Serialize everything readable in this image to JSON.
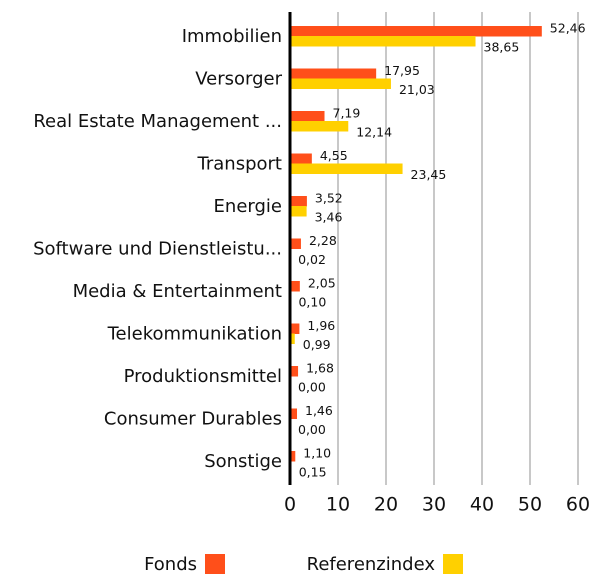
{
  "chart_data": {
    "type": "bar",
    "orientation": "horizontal",
    "categories": [
      "Immobilien",
      "Versorger",
      "Real Estate Management ...",
      "Transport",
      "Energie",
      "Software und Dienstleistu...",
      "Media & Entertainment",
      "Telekommunikation",
      "Produktionsmittel",
      "Consumer Durables",
      "Sonstige"
    ],
    "series": [
      {
        "name": "Fonds",
        "color": "#ff4f1a",
        "values": [
          52.46,
          17.95,
          7.19,
          4.55,
          3.52,
          2.28,
          2.05,
          1.96,
          1.68,
          1.46,
          1.1
        ],
        "value_labels": [
          "52,46",
          "17,95",
          "7,19",
          "4,55",
          "3,52",
          "2,28",
          "2,05",
          "1,96",
          "1,68",
          "1,46",
          "1,10"
        ]
      },
      {
        "name": "Referenzindex",
        "color": "#ffd000",
        "values": [
          38.65,
          21.03,
          12.14,
          23.45,
          3.46,
          0.02,
          0.1,
          0.99,
          0.0,
          0.0,
          0.15
        ],
        "value_labels": [
          "38,65",
          "21,03",
          "12,14",
          "23,45",
          "3,46",
          "0,02",
          "0,10",
          "0,99",
          "0,00",
          "0,00",
          "0,15"
        ]
      }
    ],
    "xlim": [
      0,
      60
    ],
    "xticks": [
      0,
      10,
      20,
      30,
      40,
      50,
      60
    ],
    "grid": true,
    "legend": "bottom"
  }
}
